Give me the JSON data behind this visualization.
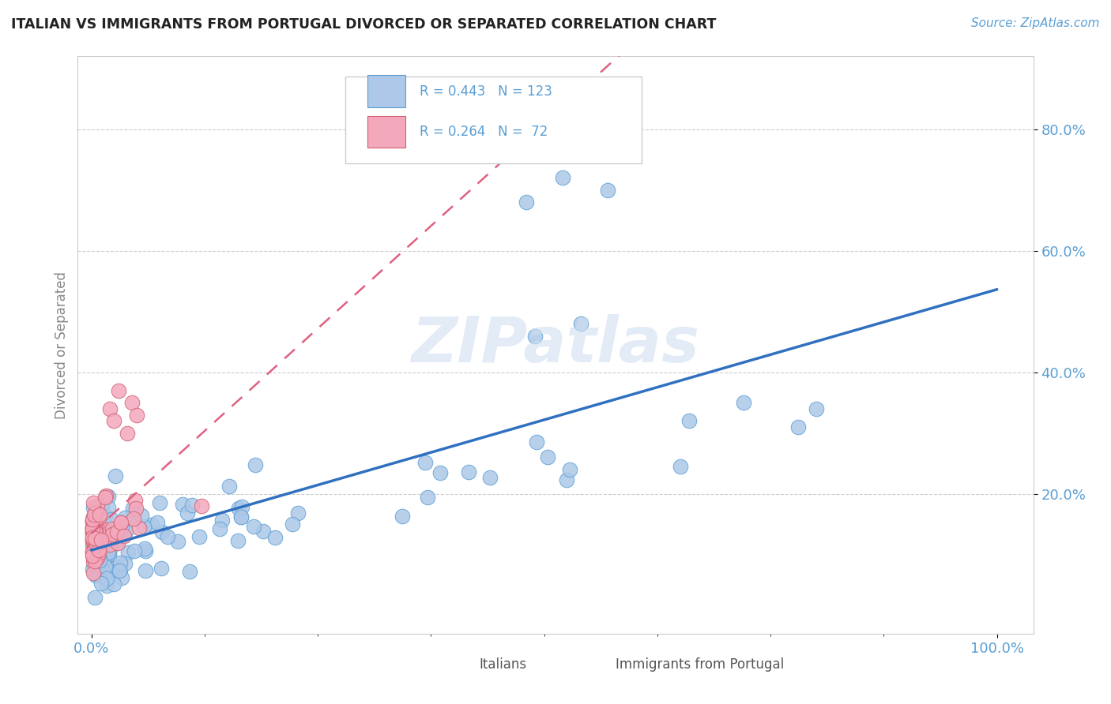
{
  "title": "ITALIAN VS IMMIGRANTS FROM PORTUGAL DIVORCED OR SEPARATED CORRELATION CHART",
  "source": "Source: ZipAtlas.com",
  "ylabel": "Divorced or Separated",
  "italians_color": "#adc8e8",
  "italians_edge_color": "#5a9fd4",
  "portugal_color": "#f4a8bc",
  "portugal_edge_color": "#d06070",
  "italians_line_color": "#3070c0",
  "portugal_line_color": "#e06080",
  "watermark_color": "#d0dff0",
  "background_color": "#ffffff",
  "grid_color": "#cccccc",
  "title_color": "#222222",
  "source_color": "#5a9fd4",
  "axis_label_color": "#5a9fd4",
  "ylabel_color": "#888888",
  "legend_text_color": "#5a9fd4",
  "bottom_legend_color": "#555555"
}
